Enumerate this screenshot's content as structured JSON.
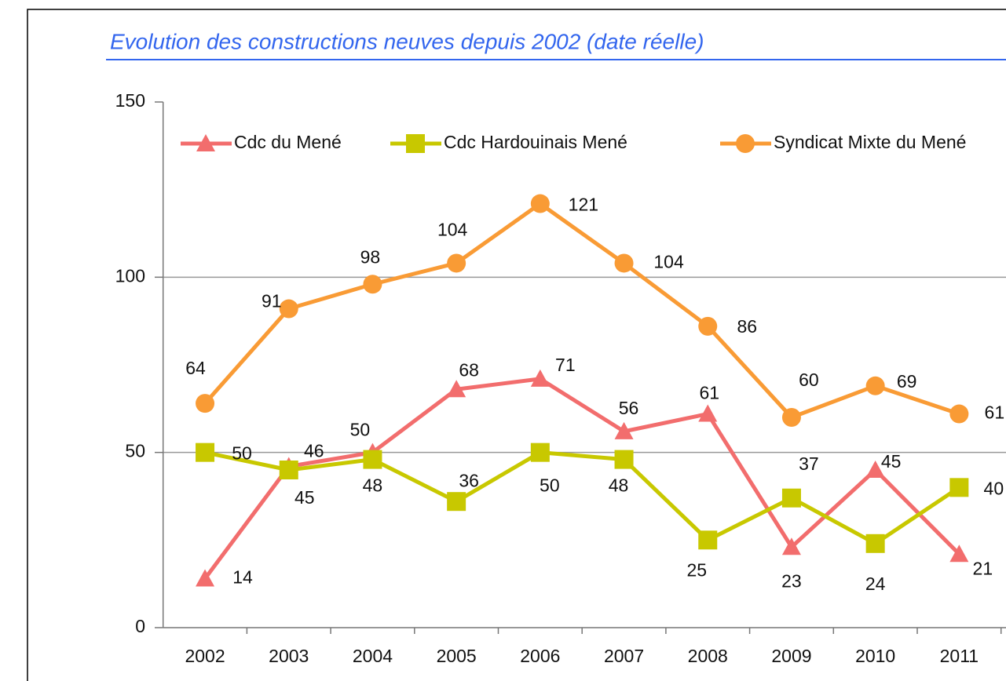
{
  "chart_data": {
    "type": "line",
    "title": "Evolution des constructions neuves depuis 2002 (date réelle)",
    "categories": [
      "2002",
      "2003",
      "2004",
      "2005",
      "2006",
      "2007",
      "2008",
      "2009",
      "2010",
      "2011"
    ],
    "series": [
      {
        "name": "Cdc du Mené",
        "color": "#f26d6d",
        "marker": "triangle",
        "values": [
          14,
          46,
          50,
          68,
          71,
          56,
          61,
          23,
          45,
          21
        ]
      },
      {
        "name": "Cdc Hardouinais Mené",
        "color": "#c8c800",
        "marker": "square",
        "values": [
          50,
          45,
          48,
          36,
          50,
          48,
          25,
          37,
          24,
          40
        ]
      },
      {
        "name": "Syndicat Mixte du Mené",
        "color": "#f99b35",
        "marker": "circle",
        "values": [
          64,
          91,
          98,
          104,
          121,
          104,
          86,
          60,
          69,
          61
        ]
      }
    ],
    "ylim": [
      0,
      150
    ],
    "yticks": [
      0,
      50,
      100,
      150
    ],
    "grid": true,
    "legend": "top"
  }
}
